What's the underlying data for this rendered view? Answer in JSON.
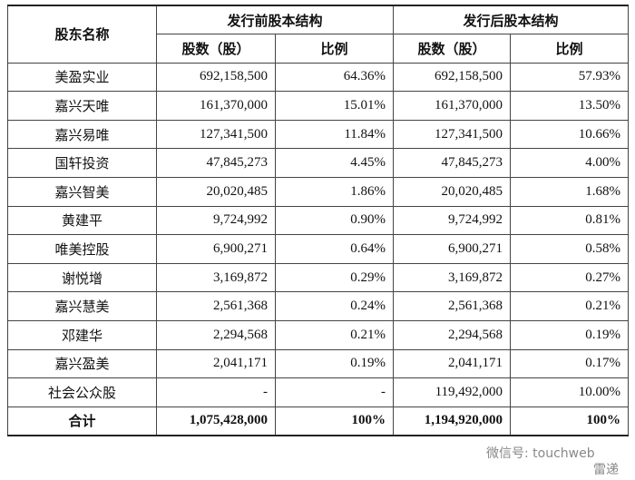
{
  "table": {
    "corner": "股东名称",
    "groups": [
      "发行前股本结构",
      "发行后股本结构"
    ],
    "subheaders": [
      "股数（股）",
      "比例",
      "股数（股）",
      "比例"
    ],
    "rows": [
      [
        "美盈实业",
        "692,158,500",
        "64.36%",
        "692,158,500",
        "57.93%"
      ],
      [
        "嘉兴天唯",
        "161,370,000",
        "15.01%",
        "161,370,000",
        "13.50%"
      ],
      [
        "嘉兴易唯",
        "127,341,500",
        "11.84%",
        "127,341,500",
        "10.66%"
      ],
      [
        "国轩投资",
        "47,845,273",
        "4.45%",
        "47,845,273",
        "4.00%"
      ],
      [
        "嘉兴智美",
        "20,020,485",
        "1.86%",
        "20,020,485",
        "1.68%"
      ],
      [
        "黄建平",
        "9,724,992",
        "0.90%",
        "9,724,992",
        "0.81%"
      ],
      [
        "唯美控股",
        "6,900,271",
        "0.64%",
        "6,900,271",
        "0.58%"
      ],
      [
        "谢悦增",
        "3,169,872",
        "0.29%",
        "3,169,872",
        "0.27%"
      ],
      [
        "嘉兴慧美",
        "2,561,368",
        "0.24%",
        "2,561,368",
        "0.21%"
      ],
      [
        "邓建华",
        "2,294,568",
        "0.21%",
        "2,294,568",
        "0.19%"
      ],
      [
        "嘉兴盈美",
        "2,041,171",
        "0.19%",
        "2,041,171",
        "0.17%"
      ],
      [
        "社会公众股",
        "-",
        "-",
        "119,492,000",
        "10.00%"
      ]
    ],
    "total": [
      "合计",
      "1,075,428,000",
      "100%",
      "1,194,920,000",
      "100%"
    ]
  },
  "watermark": {
    "account": "微信号: touchweb",
    "brand": "雷递"
  }
}
